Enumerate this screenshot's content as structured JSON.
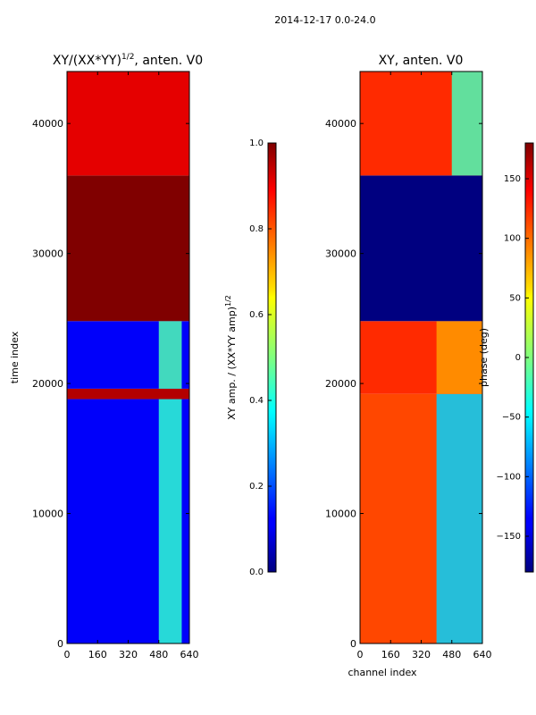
{
  "figure": {
    "suptitle": "2014-12-17 0.0-24.0"
  },
  "chart_data": [
    {
      "type": "heatmap",
      "title": "XY/(XX*YY)",
      "title_superscript": "1/2",
      "title_suffix": ", anten. V0",
      "xlabel": "",
      "ylabel": "time index",
      "xlim": [
        0,
        640
      ],
      "ylim": [
        0,
        44000
      ],
      "xticks": [
        0,
        160,
        320,
        480,
        640
      ],
      "yticks": [
        0,
        10000,
        20000,
        30000,
        40000
      ],
      "colorbar": {
        "range": [
          0.0,
          1.0
        ],
        "ticks": [
          "0.0",
          "0.2",
          "0.4",
          "0.6",
          "0.8",
          "1.0"
        ],
        "label": "XY amp. / (XX*YY amp)",
        "label_superscript": "1/2"
      },
      "bands": [
        {
          "y_range": [
            0,
            18800
          ],
          "value": 0.12,
          "x_hot_range": [
            480,
            600
          ],
          "hot_value": 0.42
        },
        {
          "y_range": [
            18800,
            19600
          ],
          "value": 0.95
        },
        {
          "y_range": [
            19600,
            24800
          ],
          "value": 0.12,
          "x_hot_range": [
            480,
            600
          ],
          "hot_value": 0.45
        },
        {
          "y_range": [
            24800,
            36000
          ],
          "value": 1.0
        },
        {
          "y_range": [
            36000,
            44000
          ],
          "value": 0.9
        }
      ]
    },
    {
      "type": "heatmap",
      "title": "XY, anten. V0",
      "xlabel": "channel index",
      "ylabel": "",
      "xlim": [
        0,
        640
      ],
      "ylim": [
        0,
        44000
      ],
      "xticks": [
        0,
        160,
        320,
        480,
        640
      ],
      "yticks": [
        0,
        10000,
        20000,
        30000,
        40000
      ],
      "colorbar": {
        "range": [
          -180,
          180
        ],
        "ticks": [
          "−150",
          "−100",
          "−50",
          "0",
          "50",
          "100",
          "150"
        ],
        "label": "phase (deg)"
      },
      "bands": [
        {
          "y_range": [
            0,
            19200
          ],
          "value": 110,
          "x_hot_range": [
            400,
            640
          ],
          "hot_value": -60
        },
        {
          "y_range": [
            19200,
            24800
          ],
          "value": 120,
          "x_hot_range": [
            400,
            640
          ],
          "hot_value": 80
        },
        {
          "y_range": [
            24800,
            36000
          ],
          "value": -180
        },
        {
          "y_range": [
            36000,
            44000
          ],
          "value": 120,
          "x_hot_range": [
            480,
            640
          ],
          "hot_value": -20
        }
      ]
    }
  ]
}
